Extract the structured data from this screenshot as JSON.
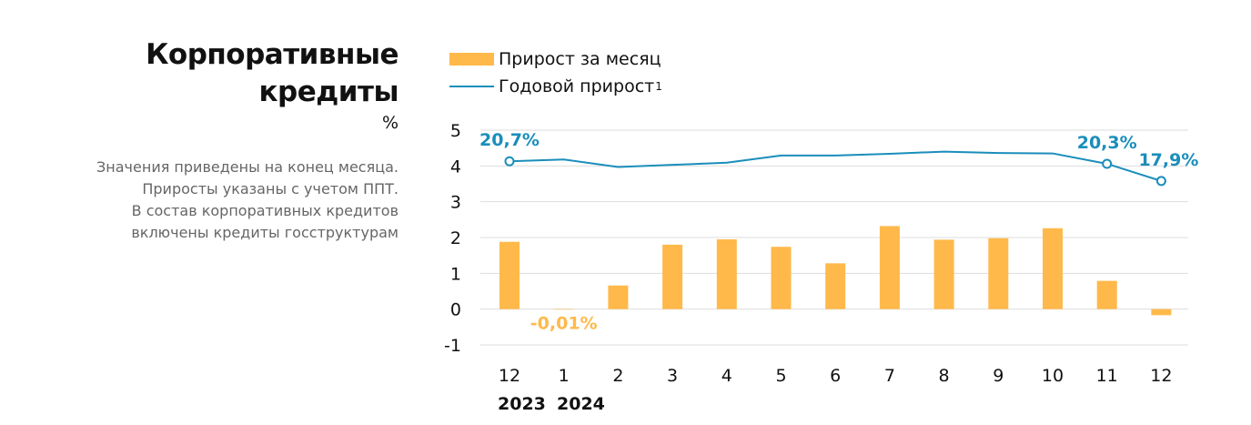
{
  "title_line1": "Корпоративные",
  "title_line2": "кредиты",
  "unit": "%",
  "note_lines": [
    "Значения приведены на конец месяца.",
    "Приросты указаны с учетом ППТ.",
    "В состав корпоративных кредитов",
    "включены кредиты госструктурам"
  ],
  "legend": {
    "bar_label": "Прирост за месяц",
    "line_label": "Годовой прирост",
    "line_footnote": "1"
  },
  "colors": {
    "bar": "#FFB94A",
    "line": "#1A8EBB",
    "grid": "#DDDDDD",
    "bar_label": "#FFB94A",
    "line_label": "#1A8EBB"
  },
  "chart_data": {
    "type": "bar",
    "categories": [
      "12",
      "1",
      "2",
      "3",
      "4",
      "5",
      "6",
      "7",
      "8",
      "9",
      "10",
      "11",
      "12"
    ],
    "year_labels": [
      "2023",
      "2024"
    ],
    "ylim": [
      -1,
      5
    ],
    "yticks": [
      "5",
      "4",
      "3",
      "2",
      "1",
      "0",
      "-1"
    ],
    "grid": true,
    "legend_position": "top-left",
    "series": [
      {
        "name": "Прирост за месяц",
        "type": "bar",
        "values": [
          1.88,
          -0.01,
          0.66,
          1.8,
          1.95,
          1.74,
          1.28,
          2.32,
          1.94,
          1.98,
          2.26,
          0.79,
          -0.17
        ]
      },
      {
        "name": "Годовой прирост",
        "type": "line",
        "values": [
          4.13,
          4.18,
          3.97,
          4.03,
          4.09,
          4.29,
          4.29,
          4.34,
          4.4,
          4.36,
          4.35,
          4.06,
          3.58
        ]
      }
    ],
    "annotations": [
      {
        "series": "Годовой прирост",
        "index": 0,
        "text": "20,7%"
      },
      {
        "series": "Годовой прирост",
        "index": 11,
        "text": "20,3%"
      },
      {
        "series": "Годовой прирост",
        "index": 12,
        "text": "17,9%"
      },
      {
        "series": "Прирост за месяц",
        "index": 1,
        "text": "-0,01%"
      }
    ]
  }
}
